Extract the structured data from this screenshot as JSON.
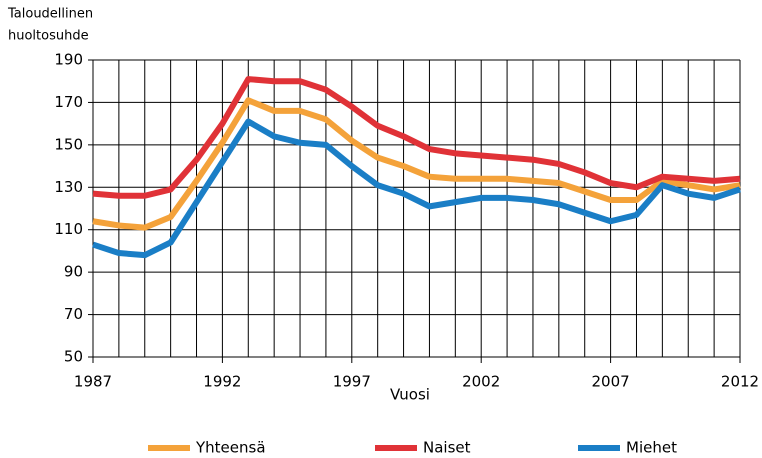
{
  "chart_data": {
    "type": "line",
    "ylabel": [
      "Taloudellinen",
      "huoltosuhde"
    ],
    "xlabel": "Vuosi",
    "x": [
      1987,
      1988,
      1989,
      1990,
      1991,
      1992,
      1993,
      1994,
      1995,
      1996,
      1997,
      1998,
      1999,
      2000,
      2001,
      2002,
      2003,
      2004,
      2005,
      2006,
      2007,
      2008,
      2009,
      2010,
      2011,
      2012
    ],
    "series": [
      {
        "name": "Yhteensä",
        "color": "#f4a23a",
        "values": [
          114,
          112,
          111,
          116,
          133,
          151,
          171,
          166,
          166,
          162,
          152,
          144,
          140,
          135,
          134,
          134,
          134,
          133,
          132,
          128,
          124,
          124,
          133,
          131,
          129,
          131
        ]
      },
      {
        "name": "Naiset",
        "color": "#e03237",
        "values": [
          127,
          126,
          126,
          129,
          143,
          160,
          181,
          180,
          180,
          176,
          168,
          159,
          154,
          148,
          146,
          145,
          144,
          143,
          141,
          137,
          132,
          130,
          135,
          134,
          133,
          134
        ]
      },
      {
        "name": "Miehet",
        "color": "#1a7ec6",
        "values": [
          103,
          99,
          98,
          104,
          123,
          142,
          161,
          154,
          151,
          150,
          140,
          131,
          127,
          121,
          123,
          125,
          125,
          124,
          122,
          118,
          114,
          117,
          131,
          127,
          125,
          129
        ]
      }
    ],
    "xlim": [
      1987,
      2012
    ],
    "xticks": [
      1987,
      1992,
      1997,
      2002,
      2007,
      2012
    ],
    "ylim": [
      50,
      190
    ],
    "yticks": [
      50,
      70,
      90,
      110,
      130,
      150,
      170,
      190
    ],
    "grid": true,
    "legend": "bottom"
  }
}
